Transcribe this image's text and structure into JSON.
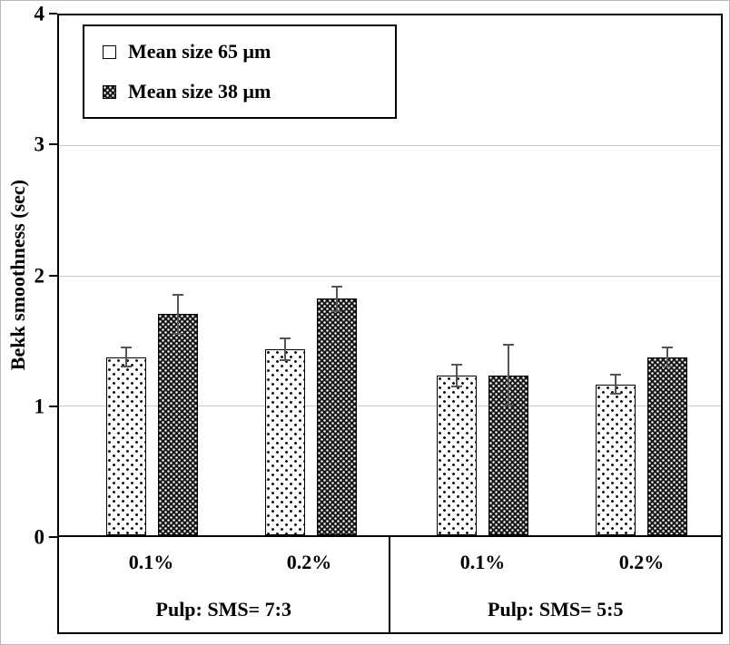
{
  "chart_data": {
    "type": "bar",
    "title": "",
    "ylabel": "Bekk smoothness (sec)",
    "ylim": [
      0,
      4
    ],
    "yticks": [
      0,
      1,
      2,
      3,
      4
    ],
    "grid": true,
    "legend_position": "top-left-inside",
    "groups": [
      {
        "label": "Pulp: SMS= 7:3",
        "categories": [
          "0.1%",
          "0.2%"
        ]
      },
      {
        "label": "Pulp: SMS= 5:5",
        "categories": [
          "0.1%",
          "0.2%"
        ]
      }
    ],
    "series": [
      {
        "name": "Mean size 65 μm",
        "pattern": "white-with-black-dots",
        "values": [
          1.37,
          1.43,
          1.23,
          1.16
        ],
        "errors": [
          0.08,
          0.09,
          0.09,
          0.08
        ]
      },
      {
        "name": "Mean size 38 μm",
        "pattern": "black-with-white-dots",
        "values": [
          1.7,
          1.82,
          1.23,
          1.37
        ],
        "errors": [
          0.16,
          0.1,
          0.24,
          0.08
        ]
      }
    ]
  },
  "colors": {
    "axis": "#000000",
    "gridline": "#c9c9c9",
    "error_bar": "#555555",
    "bar_dark": "#161616",
    "bar_light": "#ffffff"
  }
}
